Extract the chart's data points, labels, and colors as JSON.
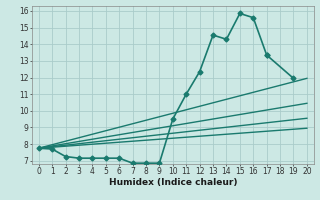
{
  "xlabel": "Humidex (Indice chaleur)",
  "xlim": [
    -0.5,
    20.5
  ],
  "ylim": [
    6.8,
    16.3
  ],
  "yticks": [
    7,
    8,
    9,
    10,
    11,
    12,
    13,
    14,
    15,
    16
  ],
  "xticks": [
    0,
    1,
    2,
    3,
    4,
    5,
    6,
    7,
    8,
    9,
    10,
    11,
    12,
    13,
    14,
    15,
    16,
    17,
    18,
    19,
    20
  ],
  "bg_color": "#cce8e4",
  "grid_color": "#aaccca",
  "line_color": "#1a7a6e",
  "jagged_line": {
    "x": [
      0,
      1,
      2,
      3,
      4,
      5,
      6,
      7,
      8,
      9,
      10,
      11,
      12,
      13,
      14,
      15,
      16,
      17,
      19
    ],
    "y": [
      7.75,
      7.7,
      7.25,
      7.15,
      7.15,
      7.15,
      7.15,
      6.85,
      6.85,
      6.85,
      9.5,
      11.0,
      12.35,
      14.55,
      14.3,
      15.85,
      15.6,
      13.35,
      11.95
    ],
    "marker": "D",
    "markersize": 2.5,
    "linewidth": 1.2
  },
  "linear_lines": [
    {
      "x0": 0,
      "y0": 7.75,
      "x1": 20,
      "y1": 11.95,
      "linewidth": 1.0
    },
    {
      "x0": 0,
      "y0": 7.75,
      "x1": 20,
      "y1": 10.45,
      "linewidth": 1.0
    },
    {
      "x0": 0,
      "y0": 7.75,
      "x1": 20,
      "y1": 9.55,
      "linewidth": 1.0
    },
    {
      "x0": 0,
      "y0": 7.75,
      "x1": 20,
      "y1": 8.95,
      "linewidth": 1.0
    }
  ]
}
